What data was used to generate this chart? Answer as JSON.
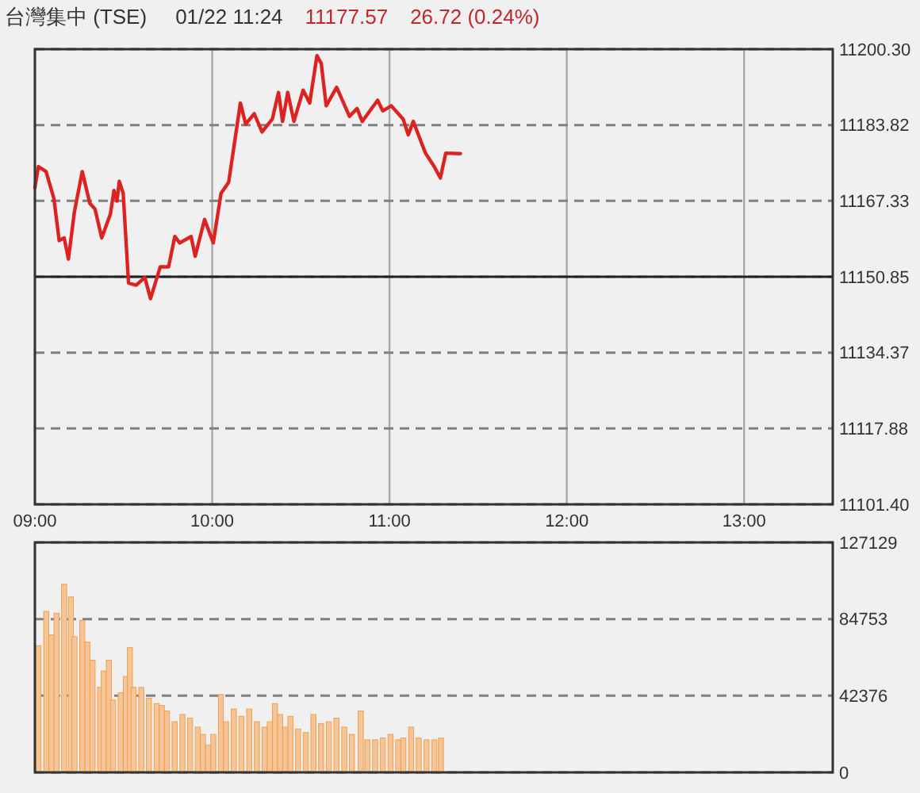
{
  "chart_data": [
    {
      "type": "line",
      "title": "台灣集中 (TSE)",
      "annotations": [
        "01/22 11:24",
        "11177.57",
        "26.72 (0.24%)"
      ],
      "xlim": [
        9,
        13.5
      ],
      "xticks": [
        {
          "value": 9,
          "label": "09:00"
        },
        {
          "value": 10,
          "label": "10:00"
        },
        {
          "value": 11,
          "label": "11:00"
        },
        {
          "value": 12,
          "label": "12:00"
        },
        {
          "value": 13,
          "label": "13:00"
        }
      ],
      "ylim": [
        11101.4,
        11200.3
      ],
      "yticks": [
        {
          "value": 11101.4,
          "label": "11101.40"
        },
        11117.88,
        11134.37,
        11150.85,
        11167.33,
        11183.82,
        {
          "value": 11200.3,
          "label": "11200.30"
        }
      ],
      "grid": true,
      "ref_lines": [
        {
          "axis": "y",
          "value": 11150.85,
          "color": "#222222",
          "line_style": "solid"
        }
      ],
      "series": [
        {
          "color": "#dd2222",
          "x": [
            9.0,
            9.02,
            9.063,
            9.107,
            9.137,
            9.165,
            9.189,
            9.223,
            9.267,
            9.31,
            9.339,
            9.377,
            9.426,
            9.446,
            9.463,
            9.476,
            9.498,
            9.528,
            9.571,
            9.62,
            9.652,
            9.707,
            9.754,
            9.789,
            9.817,
            9.881,
            9.904,
            9.957,
            10.006,
            10.05,
            10.093,
            10.159,
            10.189,
            10.237,
            10.281,
            10.339,
            10.374,
            10.397,
            10.426,
            10.461,
            10.513,
            10.55,
            10.591,
            10.615,
            10.643,
            10.702,
            10.774,
            10.817,
            10.846,
            10.933,
            10.962,
            11.01,
            11.077,
            11.106,
            11.134,
            11.203,
            11.252,
            11.287,
            11.317,
            11.4
          ],
          "values": [
            11170.2,
            11174.8,
            11173.7,
            11167.9,
            11158.7,
            11159.3,
            11154.7,
            11165.0,
            11173.7,
            11166.8,
            11165.6,
            11159.3,
            11164.5,
            11169.6,
            11167.3,
            11171.6,
            11169.0,
            11149.5,
            11149.0,
            11150.7,
            11146.1,
            11153.0,
            11153.0,
            11159.6,
            11158.2,
            11159.6,
            11155.3,
            11163.3,
            11158.2,
            11169.0,
            11171.4,
            11188.6,
            11184.0,
            11186.3,
            11182.3,
            11185.1,
            11190.9,
            11184.6,
            11190.9,
            11184.6,
            11191.4,
            11188.6,
            11198.9,
            11197.2,
            11188.0,
            11192.0,
            11185.7,
            11187.4,
            11184.6,
            11189.2,
            11186.9,
            11188.0,
            11185.1,
            11181.7,
            11184.6,
            11177.7,
            11174.8,
            11172.3,
            11177.7,
            11177.6
          ]
        }
      ]
    },
    {
      "type": "bar",
      "tick_labels": "y",
      "xlim": [
        9,
        13.5
      ],
      "ylim": [
        0,
        127129
      ],
      "yticks": [
        0,
        42376,
        84753,
        127129
      ],
      "grid": "y",
      "series": [
        {
          "color": "#f7c49a",
          "x": [
            9.02,
            9.064,
            9.093,
            9.122,
            9.165,
            9.203,
            9.223,
            9.267,
            9.296,
            9.325,
            9.368,
            9.388,
            9.417,
            9.441,
            9.484,
            9.513,
            9.536,
            9.557,
            9.6,
            9.643,
            9.687,
            9.716,
            9.745,
            9.788,
            9.832,
            9.875,
            9.919,
            9.948,
            9.977,
            10.006,
            10.049,
            10.078,
            10.122,
            10.165,
            10.209,
            10.252,
            10.296,
            10.325,
            10.354,
            10.383,
            10.412,
            10.441,
            10.484,
            10.528,
            10.571,
            10.614,
            10.658,
            10.701,
            10.745,
            10.788,
            10.838,
            10.875,
            10.919,
            10.962,
            11.006,
            11.049,
            11.078,
            11.122,
            11.165,
            11.209,
            11.252,
            11.29
          ],
          "values": [
            70000,
            89000,
            76000,
            88000,
            104000,
            97000,
            75000,
            84000,
            72000,
            62000,
            47000,
            56000,
            62000,
            40000,
            44000,
            53000,
            69000,
            47000,
            47000,
            41000,
            38000,
            37000,
            34000,
            28000,
            32000,
            30000,
            25000,
            21000,
            15000,
            21000,
            43000,
            28000,
            35000,
            31000,
            35000,
            28000,
            25000,
            28000,
            38000,
            32000,
            25000,
            31000,
            24000,
            22000,
            32000,
            27000,
            28000,
            30000,
            25000,
            21000,
            34000,
            18000,
            18000,
            19000,
            21000,
            18000,
            19000,
            25000,
            19000,
            18000,
            18000,
            19000
          ]
        }
      ]
    }
  ]
}
